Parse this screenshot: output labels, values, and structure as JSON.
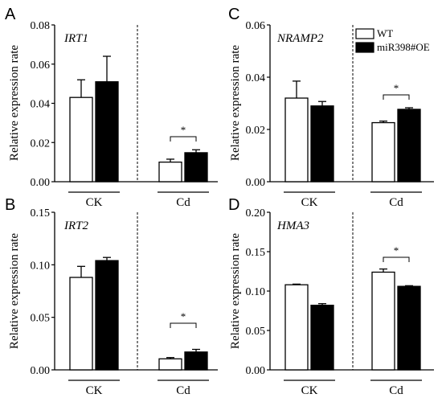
{
  "legend": {
    "wt": "WT",
    "oe": "miR398#OE"
  },
  "panels": [
    {
      "letter": "A",
      "gene": "IRT1",
      "ylabel": "Relative expression rate",
      "groups": [
        "CK",
        "Cd"
      ]
    },
    {
      "letter": "B",
      "gene": "IRT2",
      "ylabel": "Relative expression rate",
      "groups": [
        "CK",
        "Cd"
      ]
    },
    {
      "letter": "C",
      "gene": "NRAMP2",
      "ylabel": "Relative expression rate",
      "groups": [
        "CK",
        "Cd"
      ]
    },
    {
      "letter": "D",
      "gene": "HMA3",
      "ylabel": "Relative expression rate",
      "groups": [
        "CK",
        "Cd"
      ]
    }
  ],
  "chart_data": [
    {
      "type": "bar",
      "panel": "A",
      "title": "IRT1",
      "ylabel": "Relative expression rate",
      "categories": [
        "CK",
        "Cd"
      ],
      "ylim": [
        0,
        0.08
      ],
      "yticks": [
        "0.00",
        "0.02",
        "0.04",
        "0.06",
        "0.08"
      ],
      "series": [
        {
          "name": "WT",
          "values": [
            0.043,
            0.01
          ],
          "errors": [
            0.009,
            0.0015
          ]
        },
        {
          "name": "miR398#OE",
          "values": [
            0.051,
            0.0148
          ],
          "errors": [
            0.013,
            0.0015
          ]
        }
      ],
      "significance": [
        {
          "category": "Cd",
          "label": "*"
        }
      ]
    },
    {
      "type": "bar",
      "panel": "B",
      "title": "IRT2",
      "ylabel": "Relative expression rate",
      "categories": [
        "CK",
        "Cd"
      ],
      "ylim": [
        0,
        0.15
      ],
      "yticks": [
        "0.00",
        "0.05",
        "0.10",
        "0.15"
      ],
      "series": [
        {
          "name": "WT",
          "values": [
            0.088,
            0.0105
          ],
          "errors": [
            0.0105,
            0.0012
          ]
        },
        {
          "name": "miR398#OE",
          "values": [
            0.104,
            0.017
          ],
          "errors": [
            0.003,
            0.0025
          ]
        }
      ],
      "significance": [
        {
          "category": "Cd",
          "label": "*"
        }
      ]
    },
    {
      "type": "bar",
      "panel": "C",
      "title": "NRAMP2",
      "ylabel": "Relative expression rate",
      "categories": [
        "CK",
        "Cd"
      ],
      "ylim": [
        0,
        0.06
      ],
      "yticks": [
        "0.00",
        "0.02",
        "0.04",
        "0.06"
      ],
      "series": [
        {
          "name": "WT",
          "values": [
            0.032,
            0.0226
          ],
          "errors": [
            0.0065,
            0.0006
          ]
        },
        {
          "name": "miR398#OE",
          "values": [
            0.029,
            0.0277
          ],
          "errors": [
            0.0017,
            0.0006
          ]
        }
      ],
      "significance": [
        {
          "category": "Cd",
          "label": "*"
        }
      ]
    },
    {
      "type": "bar",
      "panel": "D",
      "title": "HMA3",
      "ylabel": "Relative expression rate",
      "categories": [
        "CK",
        "Cd"
      ],
      "ylim": [
        0,
        0.2
      ],
      "yticks": [
        "0.00",
        "0.05",
        "0.10",
        "0.15",
        "0.20"
      ],
      "series": [
        {
          "name": "WT",
          "values": [
            0.108,
            0.124
          ],
          "errors": [
            0.0008,
            0.004
          ]
        },
        {
          "name": "miR398#OE",
          "values": [
            0.082,
            0.106
          ],
          "errors": [
            0.002,
            0.0008
          ]
        }
      ],
      "significance": [
        {
          "category": "Cd",
          "label": "*"
        }
      ]
    }
  ]
}
